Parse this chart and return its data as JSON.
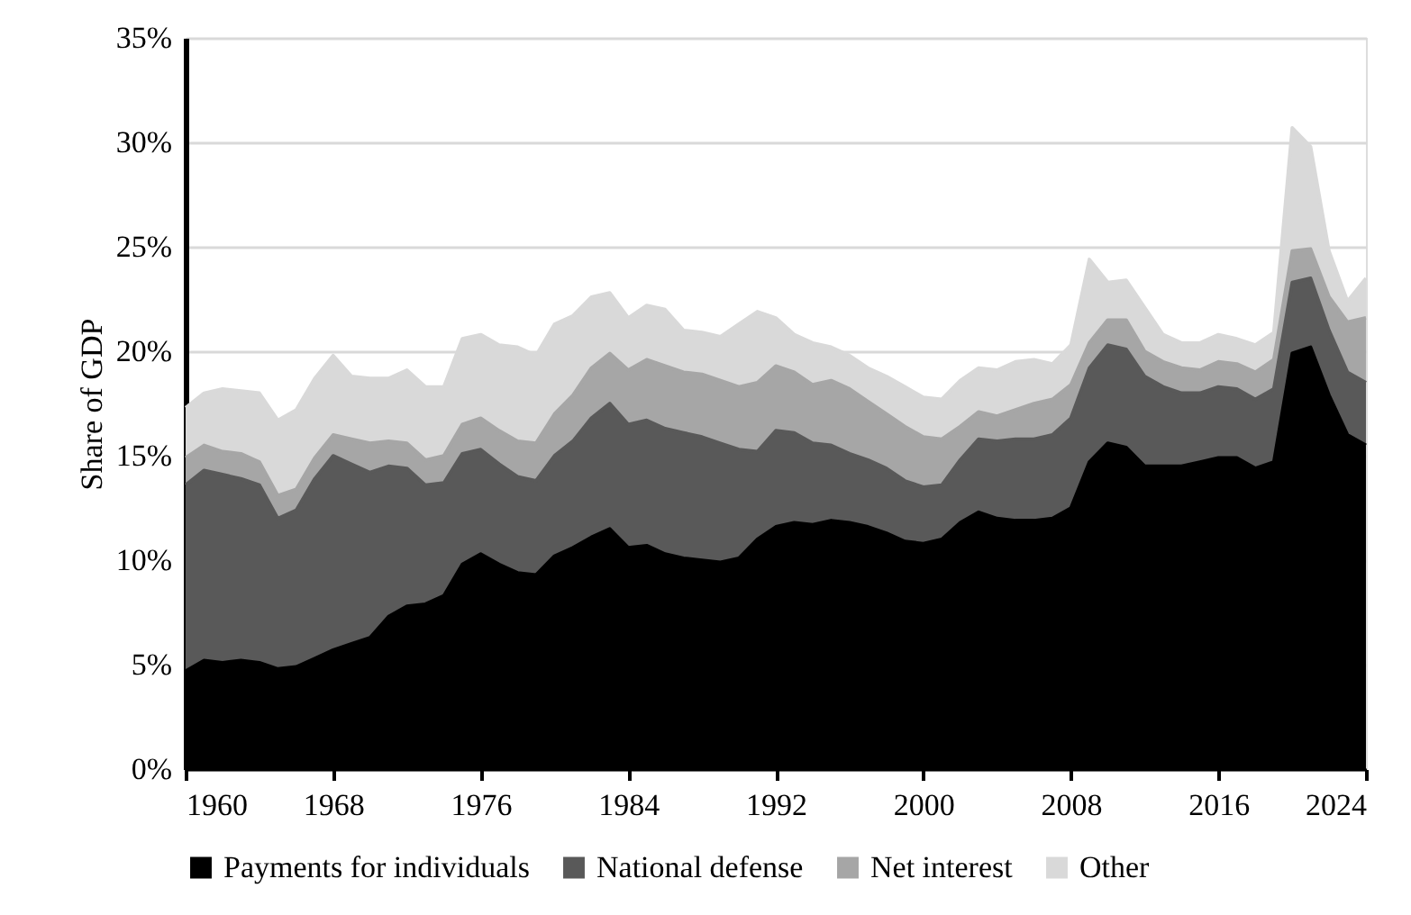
{
  "chart_data": {
    "type": "area",
    "stacked": true,
    "ylabel": "Share of GDP",
    "x": [
      1960,
      1961,
      1962,
      1963,
      1964,
      1965,
      1966,
      1967,
      1968,
      1969,
      1970,
      1971,
      1972,
      1973,
      1974,
      1975,
      1976,
      1977,
      1978,
      1979,
      1980,
      1981,
      1982,
      1983,
      1984,
      1985,
      1986,
      1987,
      1988,
      1989,
      1990,
      1991,
      1992,
      1993,
      1994,
      1995,
      1996,
      1997,
      1998,
      1999,
      2000,
      2001,
      2002,
      2003,
      2004,
      2005,
      2006,
      2007,
      2008,
      2009,
      2010,
      2011,
      2012,
      2013,
      2014,
      2015,
      2016,
      2017,
      2018,
      2019,
      2020,
      2021,
      2022,
      2023,
      2024
    ],
    "series": [
      {
        "name": "Payments for individuals",
        "color": "#000000",
        "values": [
          4.7,
          5.2,
          5.1,
          5.2,
          5.1,
          4.8,
          4.9,
          5.3,
          5.7,
          6.0,
          6.3,
          7.3,
          7.8,
          7.9,
          8.3,
          9.8,
          10.3,
          9.8,
          9.4,
          9.3,
          10.2,
          10.6,
          11.1,
          11.5,
          10.6,
          10.7,
          10.3,
          10.1,
          10.0,
          9.9,
          10.1,
          11.0,
          11.6,
          11.8,
          11.7,
          11.9,
          11.8,
          11.6,
          11.3,
          10.9,
          10.8,
          11.0,
          11.8,
          12.3,
          12.0,
          11.9,
          11.9,
          12.0,
          12.5,
          14.7,
          15.6,
          15.4,
          14.5,
          14.5,
          14.5,
          14.7,
          14.9,
          14.9,
          14.4,
          14.7,
          19.9,
          20.2,
          17.9,
          16.0,
          15.5
        ]
      },
      {
        "name": "National defense",
        "color": "#595959",
        "values": [
          8.9,
          9.1,
          9.0,
          8.7,
          8.5,
          7.2,
          7.5,
          8.6,
          9.3,
          8.6,
          7.9,
          7.2,
          6.6,
          5.7,
          5.4,
          5.3,
          5.0,
          4.8,
          4.6,
          4.5,
          4.8,
          5.1,
          5.7,
          6.0,
          5.9,
          6.0,
          6.0,
          6.0,
          5.9,
          5.7,
          5.2,
          4.2,
          4.6,
          4.3,
          3.9,
          3.6,
          3.3,
          3.2,
          3.1,
          2.9,
          2.7,
          2.6,
          3.0,
          3.5,
          3.7,
          3.9,
          3.9,
          4.0,
          4.3,
          4.5,
          4.7,
          4.7,
          4.3,
          3.8,
          3.5,
          3.3,
          3.4,
          3.3,
          3.3,
          3.5,
          3.4,
          3.3,
          3.1,
          3.0,
          3.0
        ]
      },
      {
        "name": "Net interest",
        "color": "#a6a6a6",
        "values": [
          1.3,
          1.2,
          1.1,
          1.2,
          1.1,
          1.1,
          1.0,
          1.0,
          1.0,
          1.2,
          1.4,
          1.2,
          1.2,
          1.2,
          1.3,
          1.4,
          1.5,
          1.6,
          1.7,
          1.8,
          2.0,
          2.2,
          2.4,
          2.4,
          2.6,
          2.9,
          3.0,
          2.9,
          3.0,
          3.0,
          3.0,
          3.3,
          3.1,
          2.9,
          2.8,
          3.1,
          3.1,
          2.8,
          2.6,
          2.6,
          2.4,
          2.2,
          1.6,
          1.3,
          1.2,
          1.4,
          1.7,
          1.7,
          1.6,
          1.2,
          1.2,
          1.4,
          1.2,
          1.2,
          1.2,
          1.1,
          1.2,
          1.2,
          1.3,
          1.4,
          1.5,
          1.4,
          1.6,
          2.4,
          3.1
        ]
      },
      {
        "name": "Other",
        "color": "#d9d9d9",
        "values": [
          2.4,
          2.5,
          3.0,
          3.0,
          3.3,
          3.6,
          3.8,
          3.8,
          3.8,
          3.0,
          3.1,
          3.0,
          3.5,
          3.5,
          3.3,
          4.1,
          4.0,
          4.1,
          4.5,
          4.2,
          4.3,
          3.8,
          3.4,
          2.9,
          2.5,
          2.6,
          2.7,
          2.0,
          2.0,
          2.1,
          3.0,
          3.4,
          2.3,
          1.8,
          2.0,
          1.6,
          1.6,
          1.6,
          1.8,
          1.9,
          1.9,
          1.9,
          2.2,
          2.1,
          2.2,
          2.3,
          2.1,
          1.7,
          1.9,
          4.0,
          1.8,
          1.9,
          2.1,
          1.3,
          1.2,
          1.3,
          1.3,
          1.2,
          1.3,
          1.3,
          5.9,
          4.9,
          2.2,
          1.0,
          1.9
        ]
      }
    ],
    "xlim": [
      1960,
      2024
    ],
    "xticks": [
      1960,
      1968,
      1976,
      1984,
      1992,
      2000,
      2008,
      2016,
      2024
    ],
    "ylim": [
      0,
      35
    ],
    "yticks": [
      {
        "value": 0,
        "label": "0%"
      },
      {
        "value": 5,
        "label": "5%"
      },
      {
        "value": 10,
        "label": "10%"
      },
      {
        "value": 15,
        "label": "15%"
      },
      {
        "value": 20,
        "label": "20%"
      },
      {
        "value": 25,
        "label": "25%"
      },
      {
        "value": 30,
        "label": "30%"
      },
      {
        "value": 35,
        "label": "35%"
      }
    ],
    "grid": "y",
    "legend": "bottom"
  }
}
